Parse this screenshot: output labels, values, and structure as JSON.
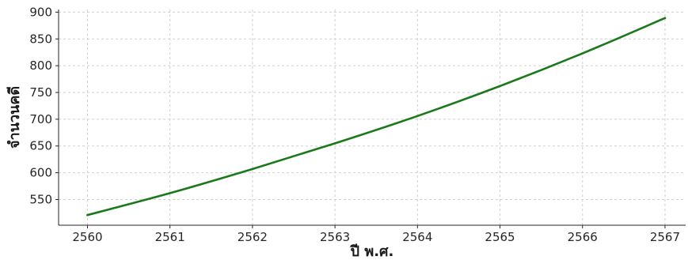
{
  "chart_data": {
    "type": "line",
    "title": "",
    "xlabel": "ปี พ.ศ.",
    "ylabel": "จำนวนคดี",
    "x": [
      2560,
      2561,
      2562,
      2563,
      2564,
      2565,
      2566,
      2567
    ],
    "series": [
      {
        "values": [
          521,
          562,
          607,
          655,
          706,
          762,
          823,
          889
        ],
        "color": "#1a7a1a"
      }
    ],
    "xticks": [
      2560,
      2561,
      2562,
      2563,
      2564,
      2565,
      2566,
      2567
    ],
    "yticks": [
      550,
      600,
      650,
      700,
      750,
      800,
      850,
      900
    ],
    "xlim": [
      2559.65,
      2567.25
    ],
    "ylim": [
      502,
      905
    ],
    "grid": true,
    "colors": {
      "line": "#1a7a1a",
      "grid": "#cfcfcf",
      "axis": "#262626"
    }
  }
}
